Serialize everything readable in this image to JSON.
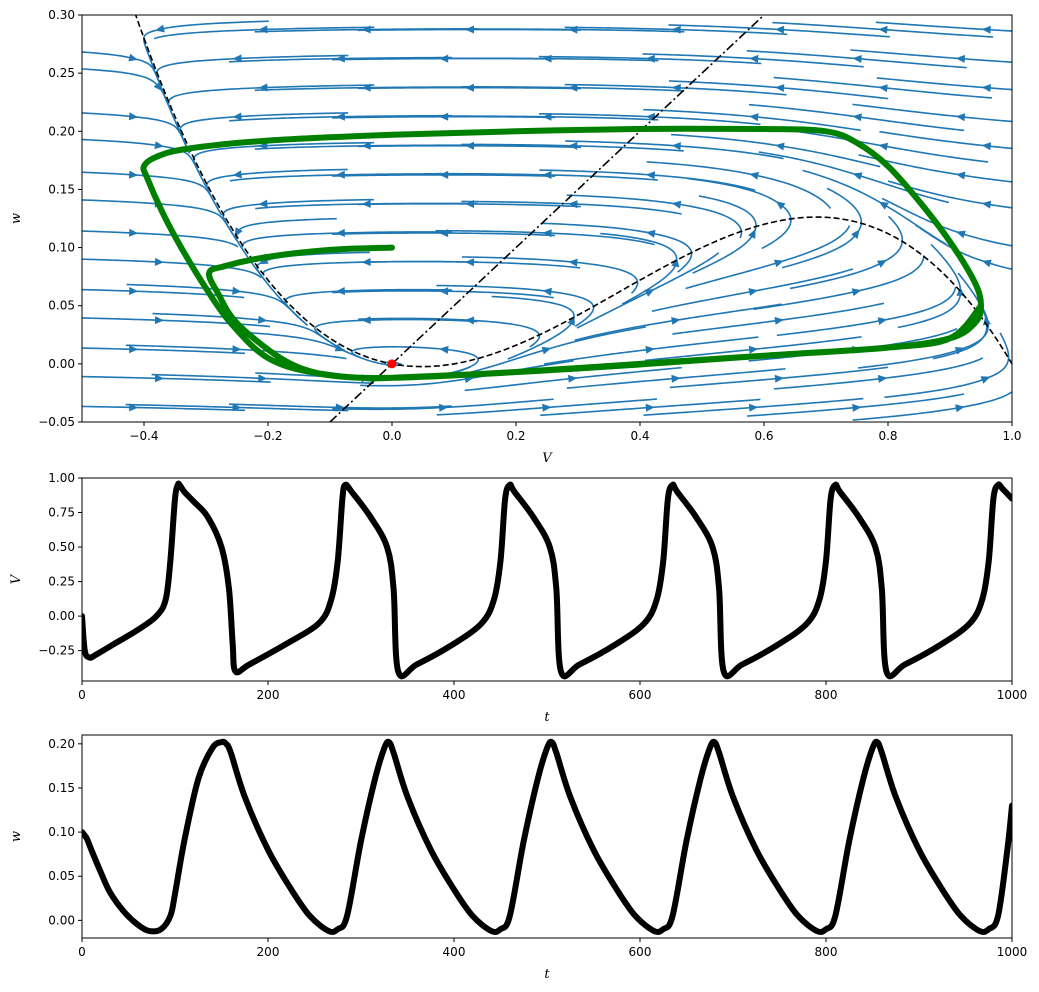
{
  "chart_data": [
    {
      "type": "phase-plane",
      "xlabel": "V",
      "ylabel": "w",
      "xlim": [
        -0.5,
        1.0
      ],
      "ylim": [
        -0.05,
        0.3
      ],
      "xticks": [
        -0.4,
        -0.2,
        0.0,
        0.2,
        0.4,
        0.6,
        0.8,
        1.0
      ],
      "xtick_labels": [
        "−0.4",
        "−0.2",
        "0.0",
        "0.2",
        "0.4",
        "0.6",
        "0.8",
        "1.0"
      ],
      "yticks": [
        -0.05,
        0.0,
        0.05,
        0.1,
        0.15,
        0.2,
        0.25,
        0.3
      ],
      "ytick_labels": [
        "−0.05",
        "0.00",
        "0.05",
        "0.10",
        "0.15",
        "0.20",
        "0.25",
        "0.30"
      ],
      "grid": false,
      "colors": {
        "streamlines": "#1f77b4",
        "trajectory": "#008000",
        "nullclines": "#000000",
        "fixed_point": "#ff0000"
      },
      "v_nullcline": {
        "style": "dashed",
        "formula": "w = V(V-0.1)(1-V)"
      },
      "w_nullcline": {
        "style": "dash-dot",
        "slope": 0.5,
        "intercept": 0.0
      },
      "fixed_point": {
        "V": 0.0,
        "w": 0.0
      },
      "trajectory": {
        "initial": {
          "V": 0.0,
          "w": 0.1
        },
        "points": [
          [
            0.0,
            0.1
          ],
          [
            -0.1,
            0.098
          ],
          [
            -0.2,
            0.092
          ],
          [
            -0.27,
            0.084
          ],
          [
            -0.295,
            0.078
          ],
          [
            -0.28,
            0.06
          ],
          [
            -0.25,
            0.035
          ],
          [
            -0.18,
            0.005
          ],
          [
            -0.12,
            -0.008
          ],
          [
            -0.05,
            -0.012
          ],
          [
            0.0,
            -0.012
          ],
          [
            0.2,
            -0.007
          ],
          [
            0.4,
            0.0
          ],
          [
            0.6,
            0.007
          ],
          [
            0.8,
            0.014
          ],
          [
            0.9,
            0.022
          ],
          [
            0.94,
            0.035
          ],
          [
            0.95,
            0.05
          ],
          [
            0.94,
            0.07
          ],
          [
            0.9,
            0.105
          ],
          [
            0.85,
            0.14
          ],
          [
            0.8,
            0.17
          ],
          [
            0.75,
            0.19
          ],
          [
            0.7,
            0.2
          ],
          [
            0.6,
            0.202
          ],
          [
            0.4,
            0.202
          ],
          [
            0.2,
            0.2
          ],
          [
            0.0,
            0.197
          ],
          [
            -0.2,
            0.192
          ],
          [
            -0.33,
            0.185
          ],
          [
            -0.38,
            0.178
          ],
          [
            -0.4,
            0.17
          ],
          [
            -0.395,
            0.16
          ],
          [
            -0.37,
            0.13
          ],
          [
            -0.34,
            0.1
          ],
          [
            -0.3,
            0.065
          ],
          [
            -0.26,
            0.035
          ],
          [
            -0.2,
            0.005
          ],
          [
            -0.12,
            -0.008
          ],
          [
            0.0,
            -0.012
          ],
          [
            0.3,
            -0.004
          ],
          [
            0.6,
            0.007
          ],
          [
            0.8,
            0.014
          ],
          [
            0.9,
            0.022
          ],
          [
            0.95,
            0.05
          ]
        ]
      }
    },
    {
      "type": "line",
      "xlabel": "t",
      "ylabel": "V",
      "xlim": [
        0,
        1000
      ],
      "ylim": [
        -0.47,
        1.0
      ],
      "xticks": [
        0,
        200,
        400,
        600,
        800,
        1000
      ],
      "xtick_labels": [
        "0",
        "200",
        "400",
        "600",
        "800",
        "1000"
      ],
      "yticks": [
        -0.25,
        0.0,
        0.25,
        0.5,
        0.75,
        1.0
      ],
      "ytick_labels": [
        "−0.25",
        "0.00",
        "0.25",
        "0.50",
        "0.75",
        "1.00"
      ],
      "color": "#000000",
      "x": [
        0,
        3,
        8,
        15,
        35,
        60,
        80,
        90,
        95,
        100,
        103,
        105,
        110,
        120,
        135,
        150,
        158,
        162,
        165,
        180,
        220,
        255,
        268,
        275,
        280,
        283,
        290,
        310,
        328,
        335,
        340,
        360,
        400,
        430,
        443,
        450,
        455,
        460,
        465,
        485,
        503,
        510,
        515,
        535,
        575,
        605,
        618,
        625,
        630,
        635,
        640,
        660,
        678,
        685,
        690,
        710,
        750,
        780,
        793,
        800,
        805,
        810,
        815,
        835,
        853,
        860,
        865,
        885,
        925,
        955,
        968,
        975,
        980,
        985,
        990,
        1000
      ],
      "y": [
        0.0,
        -0.25,
        -0.3,
        -0.28,
        -0.2,
        -0.1,
        0.0,
        0.12,
        0.4,
        0.85,
        0.95,
        0.95,
        0.9,
        0.83,
        0.72,
        0.5,
        0.2,
        -0.2,
        -0.4,
        -0.35,
        -0.2,
        -0.05,
        0.12,
        0.4,
        0.85,
        0.95,
        0.9,
        0.72,
        0.5,
        0.2,
        -0.4,
        -0.35,
        -0.2,
        -0.05,
        0.12,
        0.4,
        0.85,
        0.95,
        0.9,
        0.72,
        0.5,
        0.2,
        -0.4,
        -0.35,
        -0.2,
        -0.05,
        0.12,
        0.4,
        0.85,
        0.95,
        0.9,
        0.72,
        0.5,
        0.2,
        -0.4,
        -0.35,
        -0.2,
        -0.05,
        0.12,
        0.4,
        0.85,
        0.95,
        0.9,
        0.72,
        0.5,
        0.2,
        -0.4,
        -0.35,
        -0.2,
        -0.05,
        0.12,
        0.4,
        0.85,
        0.95,
        0.92,
        0.85
      ]
    },
    {
      "type": "line",
      "xlabel": "t",
      "ylabel": "w",
      "xlim": [
        0,
        1000
      ],
      "ylim": [
        -0.02,
        0.21
      ],
      "xticks": [
        0,
        200,
        400,
        600,
        800,
        1000
      ],
      "xtick_labels": [
        "0",
        "200",
        "400",
        "600",
        "800",
        "1000"
      ],
      "yticks": [
        0.0,
        0.05,
        0.1,
        0.15,
        0.2
      ],
      "ytick_labels": [
        "0.00",
        "0.05",
        "0.10",
        "0.15",
        "0.20"
      ],
      "color": "#000000",
      "x": [
        0,
        5,
        10,
        20,
        30,
        45,
        60,
        72,
        85,
        95,
        100,
        110,
        125,
        140,
        150,
        155,
        160,
        175,
        200,
        225,
        245,
        265,
        275,
        285,
        300,
        315,
        325,
        330,
        335,
        350,
        375,
        400,
        420,
        440,
        450,
        460,
        475,
        490,
        500,
        505,
        510,
        525,
        550,
        575,
        595,
        615,
        625,
        635,
        650,
        665,
        675,
        680,
        685,
        700,
        725,
        750,
        770,
        790,
        800,
        810,
        825,
        840,
        850,
        855,
        860,
        875,
        900,
        925,
        945,
        965,
        975,
        985,
        995,
        1000
      ],
      "y": [
        0.1,
        0.093,
        0.08,
        0.055,
        0.032,
        0.01,
        -0.005,
        -0.012,
        -0.01,
        0.005,
        0.03,
        0.09,
        0.16,
        0.195,
        0.202,
        0.2,
        0.19,
        0.14,
        0.08,
        0.035,
        0.005,
        -0.012,
        -0.01,
        0.005,
        0.09,
        0.16,
        0.195,
        0.202,
        0.19,
        0.14,
        0.08,
        0.035,
        0.005,
        -0.012,
        -0.01,
        0.005,
        0.09,
        0.16,
        0.195,
        0.202,
        0.19,
        0.14,
        0.08,
        0.035,
        0.005,
        -0.012,
        -0.01,
        0.005,
        0.09,
        0.16,
        0.195,
        0.202,
        0.19,
        0.14,
        0.08,
        0.035,
        0.005,
        -0.012,
        -0.01,
        0.005,
        0.09,
        0.16,
        0.195,
        0.202,
        0.19,
        0.14,
        0.08,
        0.035,
        0.005,
        -0.012,
        -0.01,
        0.005,
        0.08,
        0.13
      ]
    }
  ]
}
